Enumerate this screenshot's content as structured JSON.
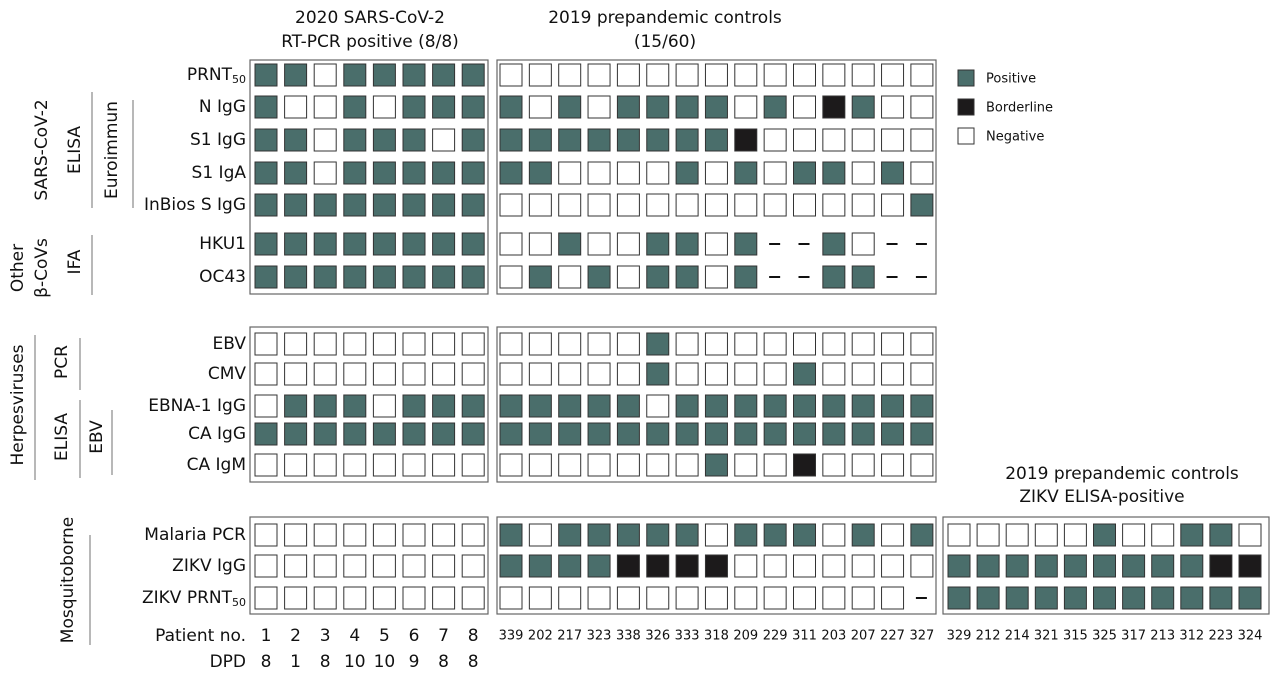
{
  "groups": [
    {
      "title": [
        "2020 SARS-CoV-2",
        "RT-PCR positive (8/8)"
      ],
      "patients": [
        "1",
        "2",
        "3",
        "4",
        "5",
        "6",
        "7",
        "8"
      ],
      "dpd": [
        "8",
        "1",
        "8",
        "10",
        "10",
        "9",
        "8",
        "8"
      ]
    },
    {
      "title": [
        "2019 prepandemic controls",
        "(15/60)"
      ],
      "patients": [
        "339",
        "202",
        "217",
        "323",
        "338",
        "326",
        "333",
        "318",
        "209",
        "229",
        "311",
        "203",
        "207",
        "227",
        "327"
      ]
    },
    {
      "title": [
        "2019 prepandemic controls",
        "ZIKV ELISA-positive"
      ],
      "patients": [
        "329",
        "212",
        "214",
        "321",
        "315",
        "325",
        "317",
        "213",
        "312",
        "223",
        "324"
      ]
    }
  ],
  "row_headers": {
    "patient": "Patient no.",
    "dpd": "DPD"
  },
  "legend": [
    {
      "label": "Positive",
      "code": "P",
      "color": "#4a6e6b"
    },
    {
      "label": "Borderline",
      "code": "B",
      "color": "#1c1a1b"
    },
    {
      "label": "Negative",
      "code": "N",
      "color": "#ffffff"
    }
  ],
  "sections": [
    {
      "rows": [
        {
          "label": "PRNT",
          "sub": "50",
          "cells": [
            [
              "P",
              "P",
              "N",
              "P",
              "P",
              "P",
              "P",
              "P"
            ],
            [
              "N",
              "N",
              "N",
              "N",
              "N",
              "N",
              "N",
              "N",
              "N",
              "N",
              "N",
              "N",
              "N",
              "N",
              "N"
            ]
          ]
        },
        {
          "label": "N IgG",
          "cells": [
            [
              "P",
              "N",
              "N",
              "P",
              "N",
              "P",
              "P",
              "P"
            ],
            [
              "P",
              "N",
              "P",
              "N",
              "P",
              "P",
              "P",
              "P",
              "N",
              "P",
              "N",
              "B",
              "P",
              "N",
              "N"
            ]
          ]
        },
        {
          "label": "S1 IgG",
          "cells": [
            [
              "P",
              "P",
              "N",
              "P",
              "P",
              "P",
              "N",
              "P"
            ],
            [
              "P",
              "P",
              "P",
              "P",
              "P",
              "P",
              "P",
              "P",
              "B",
              "N",
              "N",
              "N",
              "N",
              "N",
              "N"
            ]
          ]
        },
        {
          "label": "S1 IgA",
          "cells": [
            [
              "P",
              "P",
              "N",
              "P",
              "P",
              "P",
              "P",
              "P"
            ],
            [
              "P",
              "P",
              "N",
              "N",
              "N",
              "N",
              "P",
              "N",
              "P",
              "N",
              "P",
              "P",
              "N",
              "P",
              "N"
            ]
          ]
        },
        {
          "label": "InBios S IgG",
          "cells": [
            [
              "P",
              "P",
              "P",
              "P",
              "P",
              "P",
              "P",
              "P"
            ],
            [
              "N",
              "N",
              "N",
              "N",
              "N",
              "N",
              "N",
              "N",
              "N",
              "N",
              "N",
              "N",
              "N",
              "N",
              "P"
            ]
          ]
        },
        {
          "label": "HKU1",
          "cells": [
            [
              "P",
              "P",
              "P",
              "P",
              "P",
              "P",
              "P",
              "P"
            ],
            [
              "N",
              "N",
              "P",
              "N",
              "N",
              "P",
              "P",
              "N",
              "P",
              "-",
              "-",
              "P",
              "N",
              "-",
              "-"
            ]
          ]
        },
        {
          "label": "OC43",
          "cells": [
            [
              "P",
              "P",
              "P",
              "P",
              "P",
              "P",
              "P",
              "P"
            ],
            [
              "N",
              "P",
              "N",
              "P",
              "N",
              "P",
              "P",
              "N",
              "P",
              "-",
              "-",
              "P",
              "P",
              "-",
              "-"
            ]
          ]
        }
      ]
    },
    {
      "rows": [
        {
          "label": "EBV",
          "cells": [
            [
              "N",
              "N",
              "N",
              "N",
              "N",
              "N",
              "N",
              "N"
            ],
            [
              "N",
              "N",
              "N",
              "N",
              "N",
              "P",
              "N",
              "N",
              "N",
              "N",
              "N",
              "N",
              "N",
              "N",
              "N"
            ]
          ]
        },
        {
          "label": "CMV",
          "cells": [
            [
              "N",
              "N",
              "N",
              "N",
              "N",
              "N",
              "N",
              "N"
            ],
            [
              "N",
              "N",
              "N",
              "N",
              "N",
              "P",
              "N",
              "N",
              "N",
              "N",
              "P",
              "N",
              "N",
              "N",
              "N"
            ]
          ]
        },
        {
          "label": "EBNA-1 IgG",
          "cells": [
            [
              "N",
              "P",
              "P",
              "P",
              "N",
              "P",
              "P",
              "P"
            ],
            [
              "P",
              "P",
              "P",
              "P",
              "P",
              "N",
              "P",
              "P",
              "P",
              "P",
              "P",
              "P",
              "P",
              "P",
              "P"
            ]
          ]
        },
        {
          "label": "CA IgG",
          "cells": [
            [
              "P",
              "P",
              "P",
              "P",
              "P",
              "P",
              "P",
              "P"
            ],
            [
              "P",
              "P",
              "P",
              "P",
              "P",
              "P",
              "P",
              "P",
              "P",
              "P",
              "P",
              "P",
              "P",
              "P",
              "P"
            ]
          ]
        },
        {
          "label": "CA IgM",
          "cells": [
            [
              "N",
              "N",
              "N",
              "N",
              "N",
              "N",
              "N",
              "N"
            ],
            [
              "N",
              "N",
              "N",
              "N",
              "N",
              "N",
              "N",
              "P",
              "N",
              "N",
              "B",
              "N",
              "N",
              "N",
              "N"
            ]
          ]
        }
      ]
    },
    {
      "rows": [
        {
          "label": "Malaria PCR",
          "cells": [
            [
              "N",
              "N",
              "N",
              "N",
              "N",
              "N",
              "N",
              "N"
            ],
            [
              "P",
              "N",
              "P",
              "P",
              "P",
              "P",
              "P",
              "N",
              "P",
              "P",
              "P",
              "N",
              "P",
              "N",
              "P"
            ],
            [
              "N",
              "N",
              "N",
              "N",
              "N",
              "P",
              "N",
              "N",
              "P",
              "P",
              "N"
            ]
          ]
        },
        {
          "label": "ZIKV IgG",
          "cells": [
            [
              "N",
              "N",
              "N",
              "N",
              "N",
              "N",
              "N",
              "N"
            ],
            [
              "P",
              "P",
              "P",
              "P",
              "B",
              "B",
              "B",
              "B",
              "N",
              "N",
              "N",
              "N",
              "N",
              "N",
              "N"
            ],
            [
              "P",
              "P",
              "P",
              "P",
              "P",
              "P",
              "P",
              "P",
              "P",
              "B",
              "B"
            ]
          ]
        },
        {
          "label": "ZIKV PRNT",
          "sub": "50",
          "cells": [
            [
              "N",
              "N",
              "N",
              "N",
              "N",
              "N",
              "N",
              "N"
            ],
            [
              "N",
              "N",
              "N",
              "N",
              "N",
              "N",
              "N",
              "N",
              "N",
              "N",
              "N",
              "N",
              "N",
              "N",
              "-"
            ],
            [
              "P",
              "P",
              "P",
              "P",
              "P",
              "P",
              "P",
              "P",
              "P",
              "P",
              "P"
            ]
          ]
        }
      ]
    }
  ],
  "side_labels": [
    "SARS-CoV-2",
    "ELISA",
    "Euroimmun",
    "Other",
    "β-CoVs",
    "IFA",
    "Herpesviruses",
    "PCR",
    "ELISA",
    "EBV",
    "Mosquitoborne"
  ]
}
